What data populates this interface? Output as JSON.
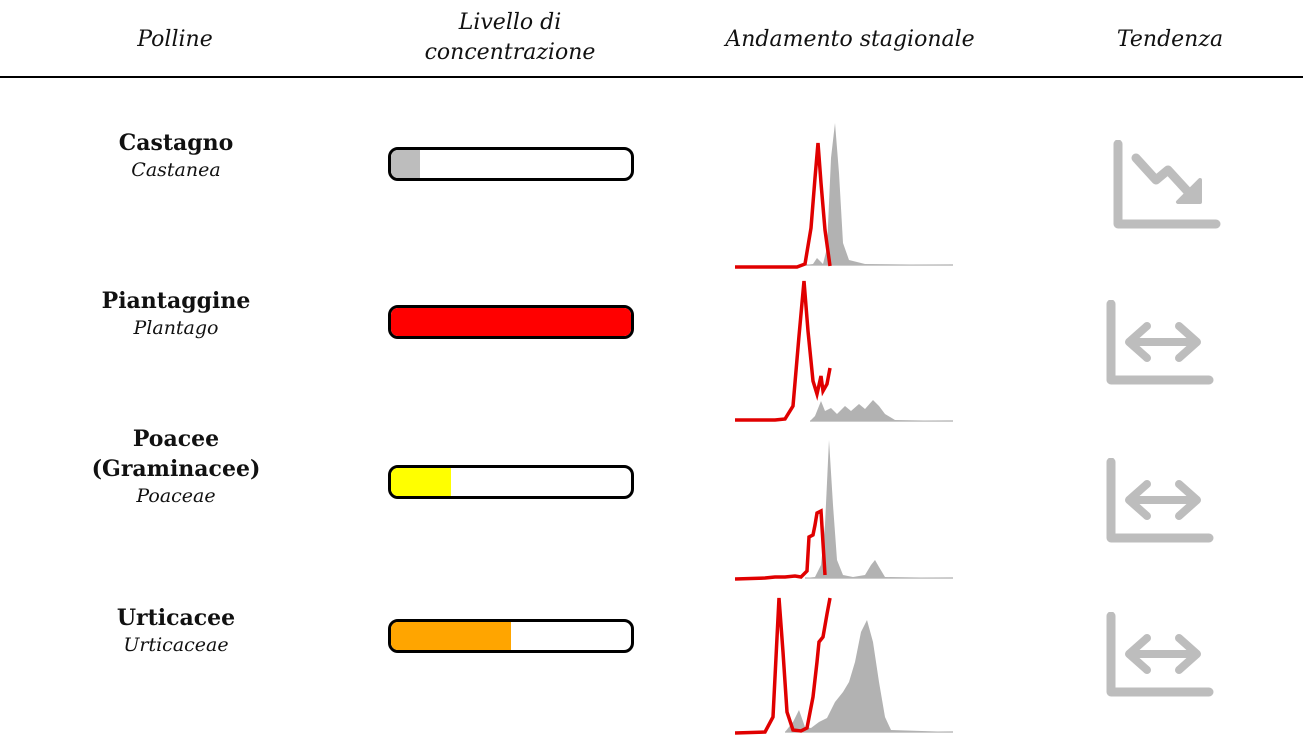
{
  "header": {
    "col_pollen": "Polline",
    "col_level": "Livello di\nconcentrazione",
    "col_season": "Andamento stagionale",
    "col_trend": "Tendenza"
  },
  "colors": {
    "gray": "#bdbdbd",
    "area_gray": "#b2b2b2",
    "red": "#e00000",
    "yellow": "#ffff00",
    "orange": "#ffa500",
    "bar_red": "#ff0000"
  },
  "rows": [
    {
      "common": "Castagno",
      "latin": "Castanea",
      "level_fraction": 0.12,
      "level_color": "#bdbdbd",
      "trend": "decreasing",
      "trend_icon": "trend-down-icon"
    },
    {
      "common": "Piantaggine",
      "latin": "Plantago",
      "level_fraction": 1.0,
      "level_color": "#ff0000",
      "trend": "stable",
      "trend_icon": "trend-stable-icon"
    },
    {
      "common": "Poacee\n(Graminacee)",
      "latin": "Poaceae",
      "level_fraction": 0.25,
      "level_color": "#ffff00",
      "trend": "stable",
      "trend_icon": "trend-stable-icon"
    },
    {
      "common": "Urticacee",
      "latin": "Urticaceae",
      "level_fraction": 0.5,
      "level_color": "#ffa500",
      "trend": "stable",
      "trend_icon": "trend-stable-icon"
    }
  ]
}
